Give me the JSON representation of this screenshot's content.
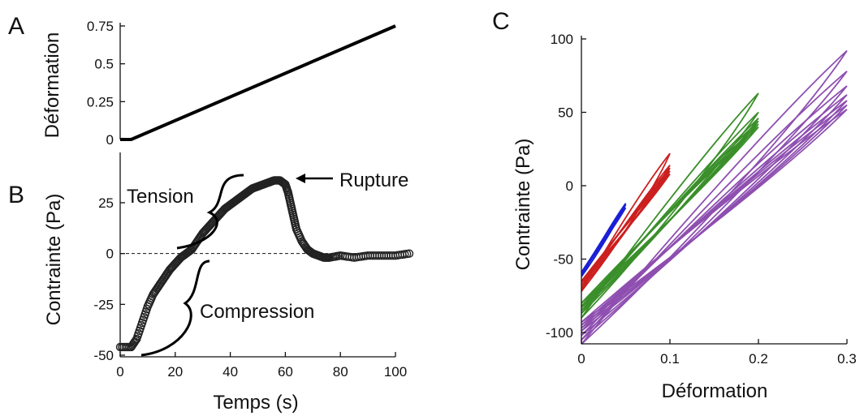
{
  "chart_data": [
    {
      "panel_label": "A",
      "type": "line",
      "xlabel": "",
      "ylabel": "Déformation",
      "xlim": [
        0,
        100
      ],
      "ylim": [
        0,
        0.75
      ],
      "yticks": [
        0,
        0.25,
        0.5,
        0.75
      ],
      "ytick_labels": [
        "0",
        "0.25",
        "0.5",
        "0.75"
      ],
      "series": [
        {
          "color": "#000000",
          "x": [
            0,
            4,
            100
          ],
          "y": [
            0,
            0,
            0.75
          ]
        }
      ]
    },
    {
      "panel_label": "B",
      "type": "scatter",
      "xlabel": "Temps (s)",
      "ylabel": "Contrainte (Pa)",
      "xlim": [
        0,
        100
      ],
      "ylim": [
        -50,
        45
      ],
      "xticks": [
        0,
        20,
        40,
        60,
        80,
        100
      ],
      "xtick_labels": [
        "0",
        "20",
        "40",
        "60",
        "80",
        "100"
      ],
      "yticks": [
        -50,
        -25,
        0,
        25
      ],
      "ytick_labels": [
        "-50",
        "-25",
        "0",
        "25"
      ],
      "zero_line": true,
      "annotations": {
        "tension": "Tension",
        "compression": "Compression",
        "rupture": "Rupture"
      },
      "series": [
        {
          "marker": "open-circle",
          "color": "#222222",
          "x": [
            0,
            4,
            6,
            8,
            10,
            12,
            14,
            16,
            18,
            20,
            22,
            24,
            26,
            28,
            30,
            32,
            34,
            36,
            38,
            40,
            42,
            44,
            46,
            48,
            50,
            52,
            54,
            56,
            58,
            60,
            61,
            62,
            63,
            64,
            66,
            68,
            70,
            72,
            74,
            76,
            80,
            85,
            90,
            95,
            100,
            105
          ],
          "y": [
            -46,
            -46,
            -42,
            -34,
            -26,
            -20,
            -16,
            -12,
            -8,
            -5,
            -2,
            0,
            2,
            6,
            10,
            13,
            16,
            19,
            22,
            24,
            26,
            28,
            30,
            32,
            33,
            34,
            35,
            36,
            36,
            34,
            30,
            24,
            18,
            12,
            6,
            2,
            0,
            -1,
            -2,
            -2,
            -1,
            -2,
            -1,
            -1,
            -1,
            0
          ]
        }
      ]
    },
    {
      "panel_label": "C",
      "type": "line",
      "xlabel": "Déformation",
      "ylabel": "Contrainte (Pa)",
      "xlim": [
        0,
        0.3
      ],
      "ylim": [
        -110,
        100
      ],
      "xticks": [
        0,
        0.1,
        0.2,
        0.3
      ],
      "xtick_labels": [
        "0",
        "0.1",
        "0.2",
        "0.3"
      ],
      "yticks": [
        -100,
        -50,
        0,
        50,
        100
      ],
      "ytick_labels": [
        "-100",
        "-50",
        "0",
        "50",
        "100"
      ],
      "loops": [
        {
          "color": "#1a1fd6",
          "amplitude": 0.05,
          "cycles": [
            {
              "y0": -62,
              "y1": -12,
              "w": 6
            },
            {
              "y0": -60,
              "y1": -13,
              "w": 4
            },
            {
              "y0": -59,
              "y1": -15,
              "w": 3
            }
          ]
        },
        {
          "color": "#cc1f1f",
          "amplitude": 0.1,
          "cycles": [
            {
              "y0": -72,
              "y1": 22,
              "w": 14
            },
            {
              "y0": -70,
              "y1": 14,
              "w": 9
            },
            {
              "y0": -68,
              "y1": 12,
              "w": 8
            },
            {
              "y0": -66,
              "y1": 10,
              "w": 7
            },
            {
              "y0": -65,
              "y1": 8,
              "w": 6
            }
          ]
        },
        {
          "color": "#3a8f2a",
          "amplitude": 0.2,
          "cycles": [
            {
              "y0": -90,
              "y1": 63,
              "w": 22
            },
            {
              "y0": -87,
              "y1": 50,
              "w": 16
            },
            {
              "y0": -85,
              "y1": 46,
              "w": 14
            },
            {
              "y0": -83,
              "y1": 44,
              "w": 13
            },
            {
              "y0": -82,
              "y1": 42,
              "w": 12
            },
            {
              "y0": -80,
              "y1": 40,
              "w": 11
            }
          ]
        },
        {
          "color": "#8e4fb0",
          "amplitude": 0.3,
          "cycles": [
            {
              "y0": -108,
              "y1": 92,
              "w": 30
            },
            {
              "y0": -105,
              "y1": 78,
              "w": 26
            },
            {
              "y0": -102,
              "y1": 68,
              "w": 24
            },
            {
              "y0": -99,
              "y1": 62,
              "w": 22
            },
            {
              "y0": -97,
              "y1": 58,
              "w": 21
            },
            {
              "y0": -95,
              "y1": 55,
              "w": 20
            },
            {
              "y0": -93,
              "y1": 52,
              "w": 19
            }
          ]
        }
      ]
    }
  ]
}
